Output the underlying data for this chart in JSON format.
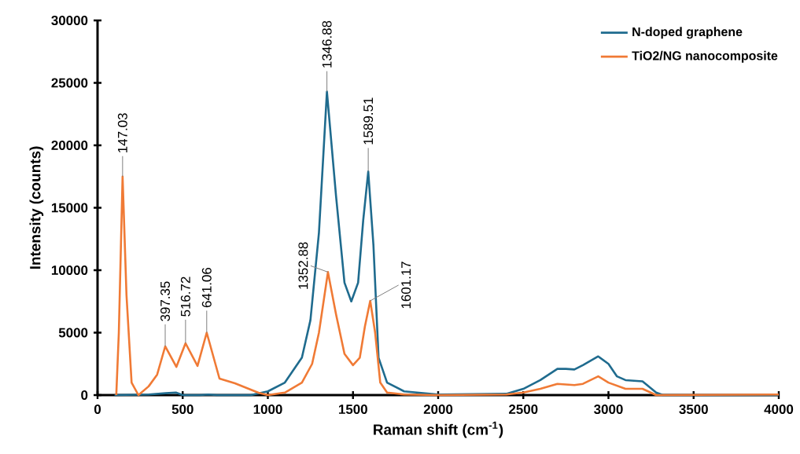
{
  "chart_data": {
    "type": "line",
    "xlabel": "Raman shift (cm$^{-1}$)",
    "ylabel": "Intensity (counts)",
    "xlim": [
      0,
      4000
    ],
    "xticks": [
      0,
      500,
      1000,
      1500,
      2000,
      2500,
      3000,
      3500,
      4000
    ],
    "ylim": [
      0,
      30000
    ],
    "yticks": [
      0,
      5000,
      10000,
      15000,
      20000,
      25000,
      30000
    ],
    "legend": "top right",
    "grid": false,
    "marker": "none",
    "line_style": "solid",
    "series": [
      {
        "name": "N-doped graphene",
        "color": "#1f6b8e",
        "x": [
          100,
          300,
          400,
          460,
          500,
          600,
          650,
          700,
          900,
          1000,
          1100,
          1200,
          1250,
          1300,
          1346.88,
          1400,
          1450,
          1490,
          1530,
          1560,
          1589.51,
          1620,
          1650,
          1700,
          1800,
          2000,
          2400,
          2500,
          2600,
          2700,
          2750,
          2800,
          2850,
          2940,
          3000,
          3050,
          3100,
          3200,
          3280,
          3320,
          4000
        ],
        "values": [
          0,
          50,
          150,
          200,
          0,
          0,
          50,
          0,
          0,
          300,
          1000,
          3000,
          6000,
          13000,
          24300,
          16000,
          9000,
          7500,
          9000,
          14000,
          17900,
          12000,
          3000,
          1000,
          300,
          50,
          100,
          500,
          1200,
          2100,
          2100,
          2050,
          2400,
          3100,
          2500,
          1500,
          1200,
          1100,
          200,
          0,
          0
        ]
      },
      {
        "name": "TiO2/NG nanocomposite",
        "color": "#f07a35",
        "x": [
          110,
          125,
          147.03,
          170,
          200,
          240,
          300,
          350,
          397.35,
          463,
          516.72,
          587,
          641.06,
          716,
          807,
          945,
          1000,
          1100,
          1200,
          1260,
          1300,
          1352.88,
          1400,
          1450,
          1500,
          1540,
          1570,
          1601.17,
          1630,
          1660,
          1700,
          1800,
          2000,
          2400,
          2500,
          2600,
          2700,
          2800,
          2850,
          2940,
          3000,
          3100,
          3200,
          3280,
          4000
        ],
        "values": [
          0,
          5000,
          17500,
          8000,
          1000,
          0,
          700,
          1640,
          3900,
          2260,
          4150,
          2330,
          5000,
          1320,
          940,
          190,
          0,
          200,
          1000,
          2500,
          5000,
          9850,
          6500,
          3300,
          2400,
          3000,
          5500,
          7550,
          5000,
          1000,
          200,
          50,
          0,
          50,
          200,
          500,
          900,
          800,
          900,
          1500,
          1000,
          500,
          500,
          0,
          50
        ]
      }
    ],
    "annotations": [
      {
        "text": "147.03",
        "x": 147.03,
        "y": 17500
      },
      {
        "text": "397.35",
        "x": 397.35,
        "y": 3900
      },
      {
        "text": "516.72",
        "x": 516.72,
        "y": 4150
      },
      {
        "text": "641.06",
        "x": 641.06,
        "y": 5000
      },
      {
        "text": "1346.88",
        "x": 1346.88,
        "y": 24300
      },
      {
        "text": "1589.51",
        "x": 1589.51,
        "y": 17900
      },
      {
        "text": "1352.88",
        "x": 1352.88,
        "y": 9850
      },
      {
        "text": "1601.17",
        "x": 1601.17,
        "y": 7550
      }
    ]
  }
}
